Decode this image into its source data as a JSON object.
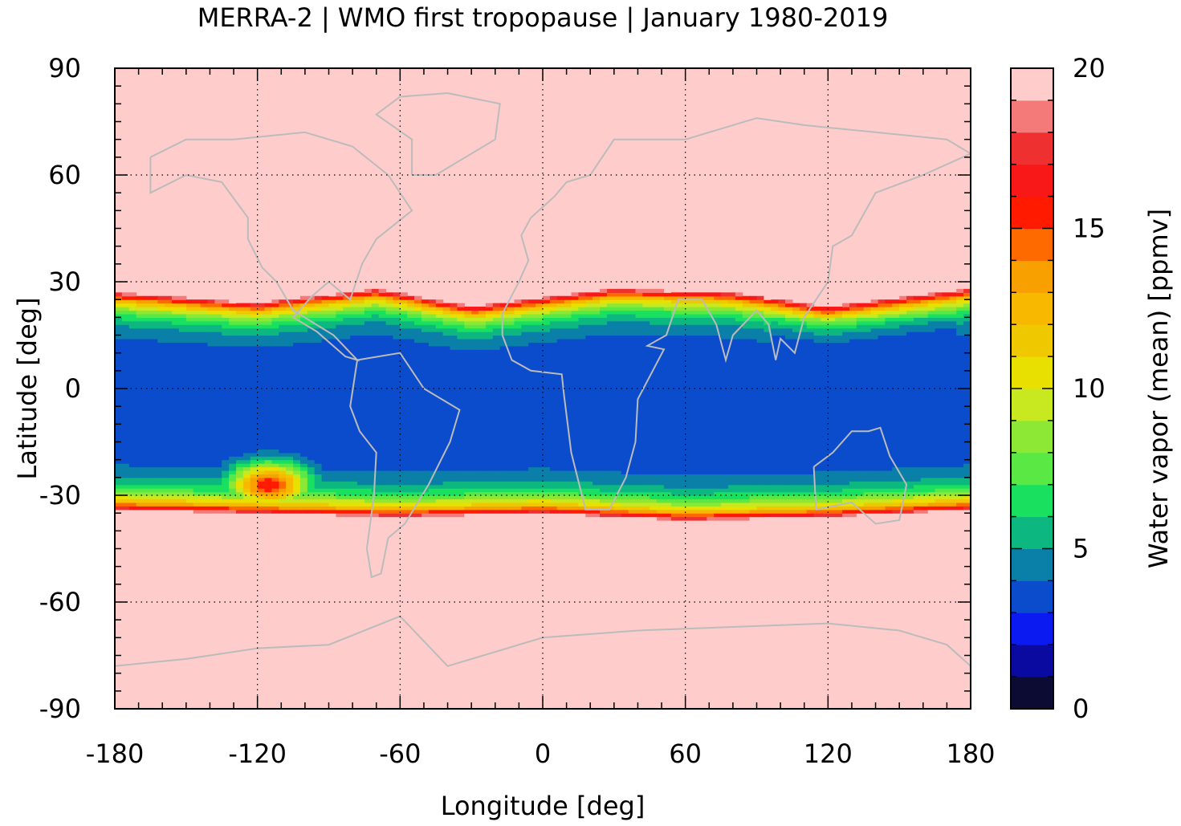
{
  "chart_data": {
    "type": "heatmap",
    "title": "MERRA-2 | WMO first tropopause | January 1980-2019",
    "xlabel": "Longitude [deg]",
    "ylabel": "Latitude [deg]",
    "xlim": [
      -180,
      180
    ],
    "ylim": [
      -90,
      90
    ],
    "xticks": [
      "-180",
      "-120",
      "-60",
      "0",
      "60",
      "120",
      "180"
    ],
    "xtick_values": [
      -180,
      -120,
      -60,
      0,
      60,
      120,
      180
    ],
    "yticks": [
      "90",
      "60",
      "30",
      "0",
      "-30",
      "-60",
      "-90"
    ],
    "ytick_values": [
      90,
      60,
      30,
      0,
      -30,
      -60,
      -90
    ],
    "grid": true,
    "colorbar": {
      "label": "Water vapor (mean) [ppmv]",
      "range": [
        0,
        20
      ],
      "ticks": [
        "0",
        "5",
        "10",
        "15",
        "20"
      ],
      "tick_values": [
        0,
        5,
        10,
        15,
        20
      ],
      "levels": [
        {
          "from": 0,
          "to": 1,
          "color": "#0b0b33"
        },
        {
          "from": 1,
          "to": 2,
          "color": "#0a0aa0"
        },
        {
          "from": 2,
          "to": 3,
          "color": "#0a1af0"
        },
        {
          "from": 3,
          "to": 4,
          "color": "#0a4ccc"
        },
        {
          "from": 4,
          "to": 5,
          "color": "#0a80a8"
        },
        {
          "from": 5,
          "to": 6,
          "color": "#0cb880"
        },
        {
          "from": 6,
          "to": 7,
          "color": "#1ae060"
        },
        {
          "from": 7,
          "to": 8,
          "color": "#5ae844"
        },
        {
          "from": 8,
          "to": 9,
          "color": "#8ce834"
        },
        {
          "from": 9,
          "to": 10,
          "color": "#c8e820"
        },
        {
          "from": 10,
          "to": 11,
          "color": "#e8e000"
        },
        {
          "from": 11,
          "to": 12,
          "color": "#f0c800"
        },
        {
          "from": 12,
          "to": 13,
          "color": "#f8b800"
        },
        {
          "from": 13,
          "to": 14,
          "color": "#f8a000"
        },
        {
          "from": 14,
          "to": 15,
          "color": "#ff6a00"
        },
        {
          "from": 15,
          "to": 16,
          "color": "#ff1a00"
        },
        {
          "from": 16,
          "to": 17,
          "color": "#f81818"
        },
        {
          "from": 17,
          "to": 18,
          "color": "#ef3030"
        },
        {
          "from": 18,
          "to": 19,
          "color": "#f47a7a"
        },
        {
          "from": 19,
          "to": 20,
          "color": "#ffcccc"
        }
      ]
    },
    "field_model": {
      "description_values": "mean water vapor at tropopause vs longitude/latitude; low (~2-3 ppmv) in tropics, saturated (>=19 ppmv) poleward of ~25N and ~33S",
      "north_edge_lat": [
        {
          "lon": -180,
          "lat": 27
        },
        {
          "lon": -120,
          "lat": 24
        },
        {
          "lon": -70,
          "lat": 28
        },
        {
          "lon": -30,
          "lat": 23
        },
        {
          "lon": 30,
          "lat": 28
        },
        {
          "lon": 80,
          "lat": 27
        },
        {
          "lon": 120,
          "lat": 23
        },
        {
          "lon": 180,
          "lat": 28
        }
      ],
      "south_edge_lat": [
        {
          "lon": -180,
          "lat": -34
        },
        {
          "lon": -120,
          "lat": -35
        },
        {
          "lon": -60,
          "lat": -36
        },
        {
          "lon": 0,
          "lat": -35
        },
        {
          "lon": 60,
          "lat": -37
        },
        {
          "lon": 120,
          "lat": -36
        },
        {
          "lon": 180,
          "lat": -34
        }
      ],
      "moist_anomaly": {
        "lon": -115,
        "lat": -27,
        "value": 16
      }
    }
  }
}
